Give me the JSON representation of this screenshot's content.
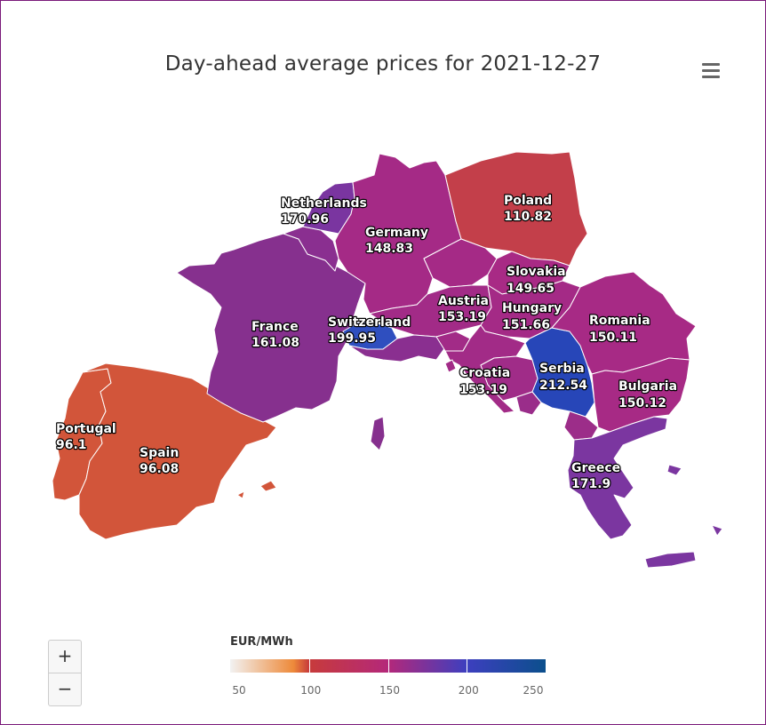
{
  "chart": {
    "title": "Day-ahead average prices for 2021-12-27",
    "menu_icon": "hamburger-menu-icon"
  },
  "chart_data": {
    "type": "choropleth",
    "unit": "EUR/MWh",
    "regions": [
      {
        "name": "Portugal",
        "value": "96.1"
      },
      {
        "name": "Spain",
        "value": "96.08"
      },
      {
        "name": "France",
        "value": "161.08"
      },
      {
        "name": "Switzerland",
        "value": "199.95"
      },
      {
        "name": "Netherlands",
        "value": "170.96"
      },
      {
        "name": "Germany",
        "value": "148.83"
      },
      {
        "name": "Poland",
        "value": "110.82"
      },
      {
        "name": "Slovakia",
        "value": "149.65"
      },
      {
        "name": "Austria",
        "value": "153.19"
      },
      {
        "name": "Hungary",
        "value": "151.66"
      },
      {
        "name": "Romania",
        "value": "150.11"
      },
      {
        "name": "Croatia",
        "value": "153.19"
      },
      {
        "name": "Serbia",
        "value": "212.54"
      },
      {
        "name": "Bulgaria",
        "value": "150.12"
      },
      {
        "name": "Greece",
        "value": "171.9"
      }
    ],
    "color_axis": {
      "min": 50,
      "max": 250,
      "ticks": [
        "50",
        "100",
        "150",
        "200",
        "250"
      ],
      "stops": [
        {
          "value": 50,
          "color": "#efefef"
        },
        {
          "value": 100,
          "color": "#c73b3b"
        },
        {
          "value": 150,
          "color": "#b4287a"
        },
        {
          "value": 200,
          "color": "#3d3fbf"
        },
        {
          "value": 250,
          "color": "#0b4f8c"
        }
      ]
    }
  },
  "colors": {
    "Portugal": "#d2553a",
    "Spain": "#d2553a",
    "France": "#86308e",
    "Switzerland": "#2f4fbf",
    "Netherlands": "#7a35a0",
    "Germany": "#a52a86",
    "Poland": "#c33f4a",
    "Slovakia": "#a82a85",
    "Austria": "#a22b87",
    "Hungary": "#a42a86",
    "Romania": "#a72a85",
    "Croatia": "#a22b87",
    "Serbia": "#2746b8",
    "Bulgaria": "#a72a85",
    "Greece": "#7b36a0",
    "Belgium": "#8a2f90",
    "Czechia": "#a52a86",
    "Slovenia": "#a22b87",
    "Italy": "#8a2f90",
    "Bosnia": "#a02c88",
    "Montenegro": "#9a2d8a",
    "Macedonia": "#9c2d89"
  },
  "zoom": {
    "in_label": "+",
    "out_label": "−"
  }
}
